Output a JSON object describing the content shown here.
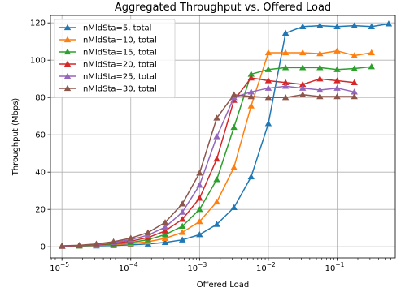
{
  "chart_data": {
    "type": "line",
    "title": "Aggregated Throughput vs. Offered Load",
    "xlabel": "Offered Load",
    "ylabel": "Throughput (Mbps)",
    "xscale": "log",
    "xlim": [
      6.8e-06,
      0.7
    ],
    "ylim": [
      -6,
      124
    ],
    "x_ticks": [
      {
        "value": 1e-05,
        "label": "10",
        "exp": "−5"
      },
      {
        "value": 0.0001,
        "label": "10",
        "exp": "−4"
      },
      {
        "value": 0.001,
        "label": "10",
        "exp": "−3"
      },
      {
        "value": 0.01,
        "label": "10",
        "exp": "−2"
      },
      {
        "value": 0.1,
        "label": "10",
        "exp": "−1"
      }
    ],
    "y_ticks": [
      0,
      20,
      40,
      60,
      80,
      100,
      120
    ],
    "grid": true,
    "legend_position": "top-left",
    "series": [
      {
        "name": "nMldSta=5, total",
        "color": "#1f77b4",
        "marker": "triangle",
        "x": [
          1e-05,
          1.78e-05,
          3.16e-05,
          5.62e-05,
          0.0001,
          0.000178,
          0.000316,
          0.000562,
          0.001,
          0.00178,
          0.00316,
          0.00562,
          0.01,
          0.0178,
          0.0316,
          0.0562,
          0.1,
          0.178,
          0.316,
          0.562
        ],
        "y": [
          0.3,
          0.4,
          0.5,
          0.7,
          1.0,
          1.5,
          2.3,
          3.7,
          6.5,
          12,
          21,
          37.5,
          66,
          114.5,
          118,
          118.5,
          118,
          118.5,
          118,
          119.5
        ]
      },
      {
        "name": "nMldSta=10, total",
        "color": "#ff7f0e",
        "marker": "triangle",
        "x": [
          1e-05,
          1.78e-05,
          3.16e-05,
          5.62e-05,
          0.0001,
          0.000178,
          0.000316,
          0.000562,
          0.001,
          0.00178,
          0.00316,
          0.00562,
          0.01,
          0.0178,
          0.0316,
          0.0562,
          0.1,
          0.178,
          0.316
        ],
        "y": [
          0.3,
          0.5,
          0.7,
          1.1,
          1.7,
          2.7,
          4.5,
          7.7,
          13.5,
          24,
          42.5,
          75.5,
          104,
          104,
          104,
          103.5,
          105,
          102.5,
          104
        ]
      },
      {
        "name": "nMldSta=15, total",
        "color": "#2ca02c",
        "marker": "triangle",
        "x": [
          1e-05,
          1.78e-05,
          3.16e-05,
          5.62e-05,
          0.0001,
          0.000178,
          0.000316,
          0.000562,
          0.001,
          0.00178,
          0.00316,
          0.00562,
          0.01,
          0.0178,
          0.0316,
          0.0562,
          0.1,
          0.178,
          0.316
        ],
        "y": [
          0.3,
          0.5,
          0.9,
          1.4,
          2.3,
          3.8,
          6.5,
          11,
          20,
          36,
          64,
          92.5,
          95,
          96,
          96,
          96,
          95,
          95.5,
          96.5
        ]
      },
      {
        "name": "nMldSta=20, total",
        "color": "#d62728",
        "marker": "triangle",
        "x": [
          1e-05,
          1.78e-05,
          3.16e-05,
          5.62e-05,
          0.0001,
          0.000178,
          0.000316,
          0.000562,
          0.001,
          0.00178,
          0.00316,
          0.00562,
          0.01,
          0.0178,
          0.0316,
          0.0562,
          0.1,
          0.178
        ],
        "y": [
          0.3,
          0.6,
          1.1,
          1.8,
          3.0,
          4.9,
          8.5,
          14.7,
          26,
          47,
          78.5,
          90.5,
          89,
          88,
          87,
          90,
          89,
          88
        ]
      },
      {
        "name": "nMldSta=25, total",
        "color": "#9467bd",
        "marker": "triangle",
        "x": [
          1e-05,
          1.78e-05,
          3.16e-05,
          5.62e-05,
          0.0001,
          0.000178,
          0.000316,
          0.000562,
          0.001,
          0.00178,
          0.00316,
          0.00562,
          0.01,
          0.0178,
          0.0316,
          0.0562,
          0.1,
          0.178
        ],
        "y": [
          0.4,
          0.7,
          1.3,
          2.2,
          3.8,
          6.2,
          10.5,
          18.5,
          33,
          59,
          80,
          83,
          85,
          86,
          85,
          84,
          85,
          83
        ]
      },
      {
        "name": "nMldSta=30, total",
        "color": "#8c564b",
        "marker": "triangle",
        "x": [
          1e-05,
          1.78e-05,
          3.16e-05,
          5.62e-05,
          0.0001,
          0.000178,
          0.000316,
          0.000562,
          0.001,
          0.00178,
          0.00316,
          0.00562,
          0.01,
          0.0178,
          0.0316,
          0.0562,
          0.1,
          0.178
        ],
        "y": [
          0.5,
          0.8,
          1.5,
          2.7,
          4.6,
          7.6,
          13,
          23,
          39.5,
          69,
          81.5,
          80.5,
          80,
          80,
          81.5,
          80.5,
          80.5,
          80.5
        ]
      }
    ]
  }
}
